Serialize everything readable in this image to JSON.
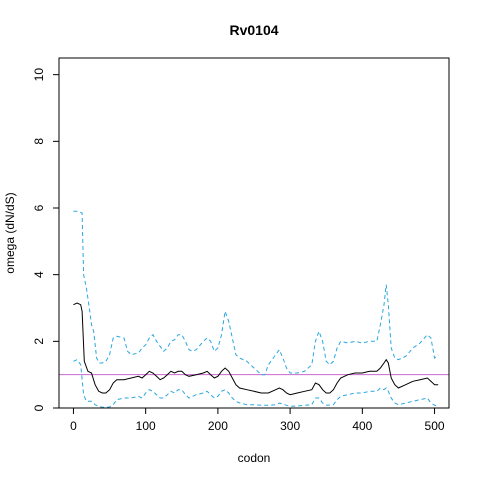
{
  "chart_data": {
    "type": "line",
    "title": "Rv0104",
    "xlabel": "codon",
    "ylabel": "omega (dN/dS)",
    "xlim": [
      -20,
      520
    ],
    "ylim": [
      0,
      10.5
    ],
    "x_ticks": [
      0,
      100,
      200,
      300,
      400,
      500
    ],
    "y_ticks": [
      0,
      2,
      4,
      6,
      8,
      10
    ],
    "grid": false,
    "series": [
      {
        "role": "estimate",
        "color": "#000000",
        "dash": "solid",
        "points": [
          [
            0,
            3.1
          ],
          [
            5,
            3.15
          ],
          [
            10,
            3.1
          ],
          [
            12,
            2.9
          ],
          [
            15,
            1.4
          ],
          [
            20,
            1.1
          ],
          [
            25,
            1.05
          ],
          [
            30,
            0.7
          ],
          [
            35,
            0.5
          ],
          [
            40,
            0.45
          ],
          [
            45,
            0.45
          ],
          [
            50,
            0.55
          ],
          [
            55,
            0.75
          ],
          [
            60,
            0.85
          ],
          [
            70,
            0.85
          ],
          [
            80,
            0.9
          ],
          [
            90,
            0.95
          ],
          [
            95,
            0.9
          ],
          [
            100,
            1.0
          ],
          [
            105,
            1.1
          ],
          [
            110,
            1.05
          ],
          [
            115,
            0.95
          ],
          [
            120,
            0.85
          ],
          [
            125,
            0.9
          ],
          [
            130,
            1.0
          ],
          [
            135,
            1.1
          ],
          [
            140,
            1.05
          ],
          [
            145,
            1.1
          ],
          [
            150,
            1.1
          ],
          [
            155,
            1.0
          ],
          [
            160,
            0.95
          ],
          [
            170,
            1.0
          ],
          [
            180,
            1.05
          ],
          [
            185,
            1.1
          ],
          [
            190,
            1.0
          ],
          [
            195,
            0.9
          ],
          [
            200,
            0.95
          ],
          [
            205,
            1.1
          ],
          [
            210,
            1.2
          ],
          [
            215,
            1.1
          ],
          [
            220,
            0.9
          ],
          [
            225,
            0.7
          ],
          [
            230,
            0.6
          ],
          [
            240,
            0.55
          ],
          [
            250,
            0.5
          ],
          [
            260,
            0.45
          ],
          [
            270,
            0.45
          ],
          [
            280,
            0.55
          ],
          [
            285,
            0.6
          ],
          [
            290,
            0.55
          ],
          [
            295,
            0.45
          ],
          [
            300,
            0.4
          ],
          [
            310,
            0.45
          ],
          [
            320,
            0.5
          ],
          [
            330,
            0.55
          ],
          [
            335,
            0.75
          ],
          [
            340,
            0.7
          ],
          [
            345,
            0.55
          ],
          [
            350,
            0.45
          ],
          [
            355,
            0.45
          ],
          [
            360,
            0.55
          ],
          [
            365,
            0.75
          ],
          [
            370,
            0.9
          ],
          [
            380,
            1.0
          ],
          [
            390,
            1.05
          ],
          [
            400,
            1.05
          ],
          [
            410,
            1.1
          ],
          [
            420,
            1.1
          ],
          [
            425,
            1.2
          ],
          [
            430,
            1.35
          ],
          [
            433,
            1.45
          ],
          [
            436,
            1.35
          ],
          [
            440,
            0.9
          ],
          [
            445,
            0.7
          ],
          [
            450,
            0.6
          ],
          [
            460,
            0.7
          ],
          [
            470,
            0.8
          ],
          [
            480,
            0.85
          ],
          [
            490,
            0.9
          ],
          [
            495,
            0.8
          ],
          [
            500,
            0.7
          ],
          [
            505,
            0.7
          ]
        ]
      },
      {
        "role": "upper-bound",
        "color": "#29a7e0",
        "dash": "dashed",
        "points": [
          [
            0,
            5.9
          ],
          [
            5,
            5.9
          ],
          [
            12,
            5.85
          ],
          [
            14,
            4.0
          ],
          [
            18,
            3.6
          ],
          [
            22,
            3.0
          ],
          [
            25,
            2.5
          ],
          [
            28,
            2.3
          ],
          [
            32,
            1.5
          ],
          [
            36,
            1.35
          ],
          [
            40,
            1.35
          ],
          [
            45,
            1.4
          ],
          [
            50,
            1.6
          ],
          [
            55,
            2.1
          ],
          [
            60,
            2.15
          ],
          [
            70,
            2.1
          ],
          [
            75,
            1.7
          ],
          [
            80,
            1.6
          ],
          [
            90,
            1.65
          ],
          [
            95,
            1.8
          ],
          [
            100,
            1.9
          ],
          [
            105,
            2.1
          ],
          [
            110,
            2.2
          ],
          [
            115,
            2.0
          ],
          [
            120,
            1.85
          ],
          [
            125,
            1.7
          ],
          [
            130,
            1.8
          ],
          [
            135,
            2.0
          ],
          [
            140,
            2.05
          ],
          [
            145,
            2.2
          ],
          [
            150,
            2.2
          ],
          [
            155,
            2.0
          ],
          [
            160,
            1.75
          ],
          [
            165,
            1.7
          ],
          [
            170,
            1.75
          ],
          [
            180,
            2.0
          ],
          [
            185,
            2.1
          ],
          [
            190,
            2.0
          ],
          [
            195,
            1.7
          ],
          [
            200,
            1.8
          ],
          [
            205,
            2.2
          ],
          [
            210,
            2.9
          ],
          [
            215,
            2.6
          ],
          [
            220,
            2.1
          ],
          [
            225,
            1.6
          ],
          [
            230,
            1.5
          ],
          [
            240,
            1.4
          ],
          [
            250,
            1.2
          ],
          [
            255,
            1.1
          ],
          [
            260,
            1.0
          ],
          [
            265,
            1.0
          ],
          [
            270,
            1.3
          ],
          [
            280,
            1.6
          ],
          [
            285,
            1.75
          ],
          [
            290,
            1.5
          ],
          [
            295,
            1.2
          ],
          [
            300,
            1.05
          ],
          [
            310,
            1.05
          ],
          [
            320,
            1.1
          ],
          [
            330,
            1.3
          ],
          [
            335,
            2.0
          ],
          [
            340,
            2.3
          ],
          [
            345,
            2.0
          ],
          [
            350,
            1.4
          ],
          [
            355,
            1.3
          ],
          [
            360,
            1.4
          ],
          [
            365,
            1.8
          ],
          [
            370,
            2.0
          ],
          [
            380,
            1.95
          ],
          [
            390,
            2.0
          ],
          [
            400,
            1.95
          ],
          [
            410,
            2.0
          ],
          [
            420,
            2.0
          ],
          [
            425,
            2.5
          ],
          [
            430,
            3.1
          ],
          [
            433,
            3.7
          ],
          [
            436,
            3.1
          ],
          [
            440,
            1.8
          ],
          [
            445,
            1.5
          ],
          [
            450,
            1.45
          ],
          [
            460,
            1.55
          ],
          [
            470,
            1.8
          ],
          [
            480,
            1.95
          ],
          [
            490,
            2.2
          ],
          [
            495,
            2.1
          ],
          [
            500,
            1.5
          ],
          [
            505,
            1.6
          ]
        ]
      },
      {
        "role": "lower-bound",
        "color": "#29a7e0",
        "dash": "dashed",
        "points": [
          [
            0,
            1.4
          ],
          [
            5,
            1.45
          ],
          [
            10,
            1.3
          ],
          [
            14,
            0.4
          ],
          [
            18,
            0.2
          ],
          [
            25,
            0.2
          ],
          [
            30,
            0.1
          ],
          [
            35,
            0.05
          ],
          [
            40,
            0.02
          ],
          [
            50,
            0.03
          ],
          [
            55,
            0.1
          ],
          [
            60,
            0.25
          ],
          [
            70,
            0.3
          ],
          [
            80,
            0.3
          ],
          [
            90,
            0.35
          ],
          [
            95,
            0.3
          ],
          [
            100,
            0.45
          ],
          [
            105,
            0.55
          ],
          [
            110,
            0.5
          ],
          [
            115,
            0.4
          ],
          [
            120,
            0.3
          ],
          [
            125,
            0.3
          ],
          [
            130,
            0.4
          ],
          [
            135,
            0.5
          ],
          [
            140,
            0.45
          ],
          [
            145,
            0.55
          ],
          [
            150,
            0.55
          ],
          [
            155,
            0.4
          ],
          [
            160,
            0.3
          ],
          [
            170,
            0.4
          ],
          [
            180,
            0.45
          ],
          [
            185,
            0.5
          ],
          [
            190,
            0.4
          ],
          [
            195,
            0.3
          ],
          [
            200,
            0.35
          ],
          [
            205,
            0.5
          ],
          [
            210,
            0.55
          ],
          [
            215,
            0.45
          ],
          [
            220,
            0.3
          ],
          [
            225,
            0.2
          ],
          [
            230,
            0.15
          ],
          [
            240,
            0.1
          ],
          [
            250,
            0.1
          ],
          [
            260,
            0.08
          ],
          [
            270,
            0.08
          ],
          [
            280,
            0.1
          ],
          [
            285,
            0.15
          ],
          [
            290,
            0.12
          ],
          [
            295,
            0.08
          ],
          [
            300,
            0.05
          ],
          [
            310,
            0.06
          ],
          [
            320,
            0.08
          ],
          [
            330,
            0.1
          ],
          [
            335,
            0.3
          ],
          [
            340,
            0.3
          ],
          [
            345,
            0.15
          ],
          [
            350,
            0.08
          ],
          [
            360,
            0.1
          ],
          [
            365,
            0.25
          ],
          [
            370,
            0.35
          ],
          [
            380,
            0.4
          ],
          [
            390,
            0.45
          ],
          [
            400,
            0.45
          ],
          [
            410,
            0.5
          ],
          [
            420,
            0.5
          ],
          [
            425,
            0.6
          ],
          [
            430,
            0.55
          ],
          [
            433,
            0.6
          ],
          [
            436,
            0.5
          ],
          [
            440,
            0.3
          ],
          [
            445,
            0.15
          ],
          [
            450,
            0.1
          ],
          [
            460,
            0.15
          ],
          [
            470,
            0.2
          ],
          [
            480,
            0.25
          ],
          [
            490,
            0.3
          ],
          [
            495,
            0.15
          ],
          [
            500,
            0.08
          ],
          [
            505,
            0.06
          ]
        ]
      }
    ],
    "reference_lines": [
      {
        "y": 1,
        "color": "#cc66cc"
      }
    ]
  }
}
